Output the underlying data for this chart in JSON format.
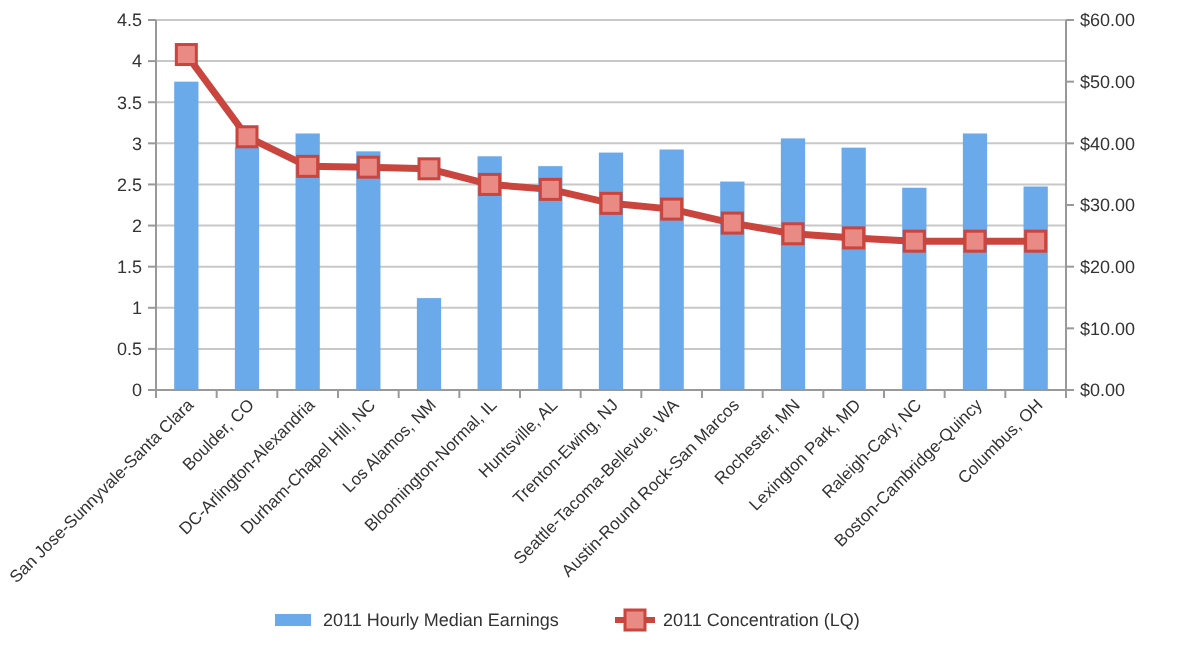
{
  "chart_data": {
    "type": "bar",
    "categories": [
      "San Jose-Sunnyvale-Santa Clara",
      "Boulder, CO",
      "DC-Arlington-Alexandria",
      "Durham-Chapel Hill, NC",
      "Los Alamos, NM",
      "Bloomington-Normal, IL",
      "Huntsville, AL",
      "Trenton-Ewing, NJ",
      "Seattle-Tacoma-Bellevue, WA",
      "Austin-Round Rock-San Marcos",
      "Rochester, MN",
      "Lexington Park, MD",
      "Raleigh-Cary, NC",
      "Boston-Cambridge-Quincy",
      "Columbus, OH"
    ],
    "series": [
      {
        "name": "2011 Hourly Median Earnings",
        "axis": "y2",
        "color": "#6aa9ea",
        "values": [
          50,
          39.3,
          41.6,
          38.7,
          14.9,
          37.9,
          36.3,
          38.5,
          39,
          33.8,
          40.8,
          39.3,
          32.8,
          41.6,
          33
        ]
      },
      {
        "name": "2011 Concentration (LQ)",
        "type": "line",
        "axis": "y",
        "color": "#c9453d",
        "marker": "square",
        "values": [
          4.08,
          3.08,
          2.72,
          2.71,
          2.69,
          2.5,
          2.44,
          2.27,
          2.2,
          2.03,
          1.9,
          1.85,
          1.81,
          1.81,
          1.81
        ]
      }
    ],
    "ylim": [
      0,
      4.5
    ],
    "yticks": [
      0,
      0.5,
      1,
      1.5,
      2,
      2.5,
      3,
      3.5,
      4,
      4.5
    ],
    "y2lim": [
      0,
      60
    ],
    "y2ticks": [
      {
        "value": 0,
        "label": "$0.00"
      },
      {
        "value": 10,
        "label": "$10.00"
      },
      {
        "value": 20,
        "label": "$20.00"
      },
      {
        "value": 30,
        "label": "$30.00"
      },
      {
        "value": 40,
        "label": "$40.00"
      },
      {
        "value": 50,
        "label": "$50.00"
      },
      {
        "value": 60,
        "label": "$60.00"
      }
    ],
    "grid": "y",
    "legend": "bottom"
  }
}
